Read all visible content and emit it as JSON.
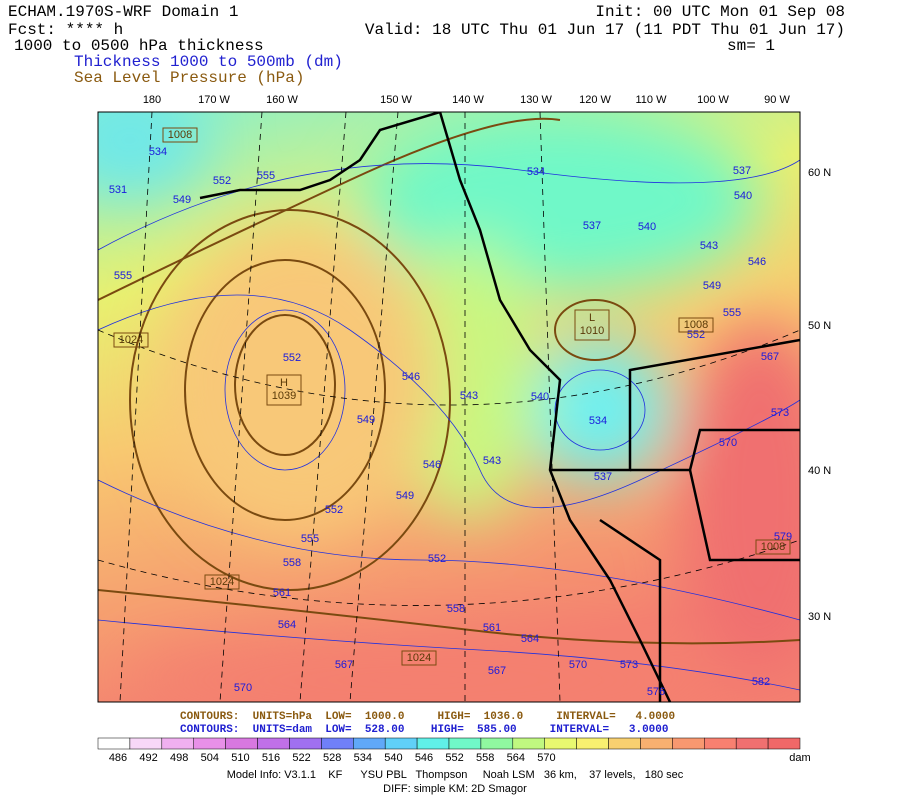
{
  "header": {
    "title": "ECHAM.1970S-WRF Domain 1",
    "fcst": "Fcst: **** h",
    "init": "Init: 00 UTC Mon 01 Sep 08",
    "valid": "Valid: 18 UTC Thu 01 Jun 17 (11 PDT Thu 01 Jun 17)",
    "field": "1000 to 0500 hPa thickness",
    "smooth": "sm= 1",
    "legend_thickness": "Thickness 1000 to 500mb (dm)",
    "legend_slp": "Sea Level Pressure (hPa)"
  },
  "map": {
    "lon_labels": [
      "180",
      "170 W",
      "160 W",
      "150 W",
      "140 W",
      "130 W",
      "120 W",
      "110 W",
      "100 W",
      "90 W"
    ],
    "lat_labels": [
      "60 N",
      "50 N",
      "40 N",
      "30 N"
    ],
    "thickness_labels": [
      534,
      531,
      549,
      552,
      555,
      555,
      552,
      546,
      543,
      540,
      534,
      549,
      546,
      543,
      549,
      537,
      552,
      555,
      552,
      558,
      561,
      558,
      561,
      564,
      564,
      567,
      567,
      570,
      573,
      576,
      570,
      582,
      579,
      573,
      570,
      567,
      552,
      555,
      549,
      546,
      543,
      540,
      537,
      534,
      537,
      540
    ],
    "pressure_labels": [
      "1008",
      "1024",
      "1024",
      "1024",
      "1008",
      "1008"
    ],
    "high": {
      "letter": "H",
      "value": "1039"
    },
    "low": {
      "letter": "L",
      "value": "1010"
    }
  },
  "contour_info": {
    "slp": "CONTOURS:  UNITS=hPa  LOW=  1000.0     HIGH=  1036.0     INTERVAL=   4.0000",
    "thickness": "CONTOURS:  UNITS=dam  LOW=  528.00    HIGH=  585.00     INTERVAL=   3.0000"
  },
  "colorbar": {
    "labels": [
      486,
      492,
      498,
      504,
      510,
      516,
      522,
      528,
      534,
      540,
      546,
      552,
      558,
      564,
      570
    ],
    "unit": "dam",
    "colors": [
      "#ffffff",
      "#f8d8f8",
      "#f0b0f0",
      "#e890e8",
      "#d878e0",
      "#c070e8",
      "#a070f0",
      "#7080f8",
      "#60a8f8",
      "#60d0f8",
      "#60f0e8",
      "#70f8c8",
      "#90f8a0",
      "#c0f880",
      "#e8f870",
      "#f8f070",
      "#f8d070",
      "#f8b070",
      "#f89870",
      "#f88070",
      "#f07070",
      "#f06868"
    ]
  },
  "footer": {
    "model": "Model Info: V3.1.1    KF      YSU PBL   Thompson     Noah LSM   36 km,    37 levels,   180 sec",
    "diff": "DIFF: simple KM: 2D Smagor"
  }
}
